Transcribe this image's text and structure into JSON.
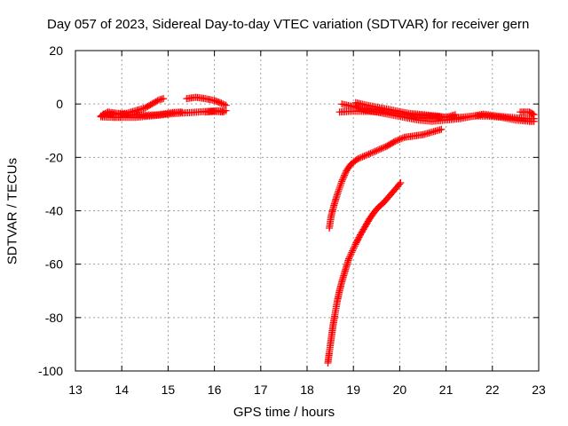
{
  "chart_data": {
    "type": "scatter",
    "title": "Day 057 of 2023, Sidereal Day-to-day VTEC variation (SDTVAR) for receiver gern",
    "xlabel": "GPS time / hours",
    "ylabel": "SDTVAR / TECUs",
    "xlim": [
      13,
      23
    ],
    "ylim": [
      -100,
      20
    ],
    "x_ticks": [
      "13",
      "14",
      "15",
      "16",
      "17",
      "18",
      "19",
      "20",
      "21",
      "22",
      "23"
    ],
    "y_ticks": [
      "-100",
      "-80",
      "-60",
      "-40",
      "-20",
      "0",
      "20"
    ],
    "grid": true,
    "marker": "+",
    "color": "#ff0000",
    "series": [
      {
        "points": [
          [
            13.55,
            -4.5
          ],
          [
            13.7,
            -3
          ],
          [
            13.9,
            -3.5
          ],
          [
            14.1,
            -3.5
          ],
          [
            14.3,
            -2.5
          ],
          [
            14.5,
            -1.5
          ],
          [
            14.65,
            0
          ],
          [
            14.8,
            1.5
          ],
          [
            14.9,
            2
          ]
        ]
      },
      {
        "points": [
          [
            13.55,
            -4.8
          ],
          [
            13.8,
            -5
          ],
          [
            14.0,
            -5
          ],
          [
            14.3,
            -5
          ],
          [
            14.6,
            -4.5
          ],
          [
            14.9,
            -4
          ],
          [
            15.2,
            -3.5
          ],
          [
            15.5,
            -3.2
          ],
          [
            15.8,
            -2.8
          ],
          [
            16.1,
            -2.5
          ],
          [
            16.25,
            -2.5
          ]
        ]
      },
      {
        "points": [
          [
            13.6,
            -3.8
          ],
          [
            13.9,
            -3.9
          ],
          [
            14.2,
            -4
          ],
          [
            14.5,
            -4.2
          ],
          [
            14.8,
            -4
          ],
          [
            15.1,
            -3.2
          ],
          [
            15.3,
            -3
          ]
        ]
      },
      {
        "points": [
          [
            15.4,
            2
          ],
          [
            15.6,
            2.5
          ],
          [
            15.8,
            2
          ],
          [
            16.0,
            1.3
          ],
          [
            16.15,
            0.3
          ],
          [
            16.25,
            -0.5
          ]
        ]
      },
      {
        "points": [
          [
            15.8,
            -3
          ],
          [
            16.0,
            -2.8
          ],
          [
            16.2,
            -3
          ]
        ]
      },
      {
        "points": [
          [
            18.7,
            -3
          ],
          [
            19.0,
            -2.7
          ],
          [
            19.4,
            -2.8
          ],
          [
            19.8,
            -3.3
          ],
          [
            20.2,
            -4
          ],
          [
            20.6,
            -4.5
          ],
          [
            21.0,
            -5
          ],
          [
            21.3,
            -5
          ],
          [
            21.6,
            -4.5
          ],
          [
            21.8,
            -3.8
          ],
          [
            22.1,
            -4.5
          ],
          [
            22.4,
            -5
          ],
          [
            22.7,
            -5.5
          ],
          [
            22.9,
            -5.5
          ]
        ]
      },
      {
        "points": [
          [
            18.75,
            0
          ],
          [
            19.0,
            -1
          ],
          [
            19.2,
            -2
          ],
          [
            19.5,
            -3
          ],
          [
            19.8,
            -4
          ],
          [
            20.1,
            -5
          ],
          [
            20.4,
            -6
          ],
          [
            20.7,
            -6.5
          ],
          [
            21.0,
            -6
          ],
          [
            21.3,
            -5.5
          ],
          [
            21.6,
            -4.5
          ],
          [
            21.9,
            -4.5
          ],
          [
            22.2,
            -5
          ],
          [
            22.5,
            -6
          ],
          [
            22.8,
            -6.5
          ],
          [
            22.9,
            -6.5
          ]
        ]
      },
      {
        "points": [
          [
            19.05,
            0.5
          ],
          [
            19.3,
            -0.5
          ],
          [
            19.6,
            -1.5
          ],
          [
            19.9,
            -2.5
          ],
          [
            20.2,
            -3.5
          ],
          [
            20.5,
            -4
          ],
          [
            20.8,
            -4.5
          ],
          [
            21.0,
            -5
          ],
          [
            21.2,
            -4
          ]
        ]
      },
      {
        "points": [
          [
            22.6,
            -3
          ],
          [
            22.8,
            -3
          ],
          [
            22.9,
            -4
          ]
        ]
      },
      {
        "points": [
          [
            18.48,
            -46.5
          ],
          [
            18.52,
            -42
          ],
          [
            18.58,
            -38
          ],
          [
            18.65,
            -34
          ],
          [
            18.75,
            -29
          ],
          [
            18.85,
            -25
          ],
          [
            18.95,
            -22.5
          ],
          [
            19.1,
            -20.5
          ],
          [
            19.3,
            -19
          ],
          [
            19.5,
            -17.5
          ],
          [
            19.7,
            -16
          ],
          [
            19.9,
            -14
          ],
          [
            20.1,
            -12.5
          ],
          [
            20.3,
            -12
          ],
          [
            20.5,
            -11.5
          ],
          [
            20.7,
            -10.5
          ],
          [
            20.9,
            -9.5
          ]
        ]
      },
      {
        "points": [
          [
            18.45,
            -97
          ],
          [
            18.48,
            -93
          ],
          [
            18.52,
            -88
          ],
          [
            18.56,
            -83
          ],
          [
            18.6,
            -79
          ],
          [
            18.65,
            -74
          ],
          [
            18.7,
            -70
          ],
          [
            18.76,
            -66
          ],
          [
            18.83,
            -62
          ],
          [
            18.9,
            -58
          ],
          [
            18.98,
            -55
          ],
          [
            19.06,
            -52
          ],
          [
            19.15,
            -49
          ],
          [
            19.25,
            -46
          ],
          [
            19.35,
            -43
          ],
          [
            19.45,
            -40.5
          ],
          [
            19.55,
            -38.5
          ],
          [
            19.65,
            -37
          ],
          [
            19.75,
            -35
          ],
          [
            19.85,
            -33
          ],
          [
            19.95,
            -31
          ],
          [
            20.02,
            -29.5
          ]
        ]
      }
    ]
  }
}
